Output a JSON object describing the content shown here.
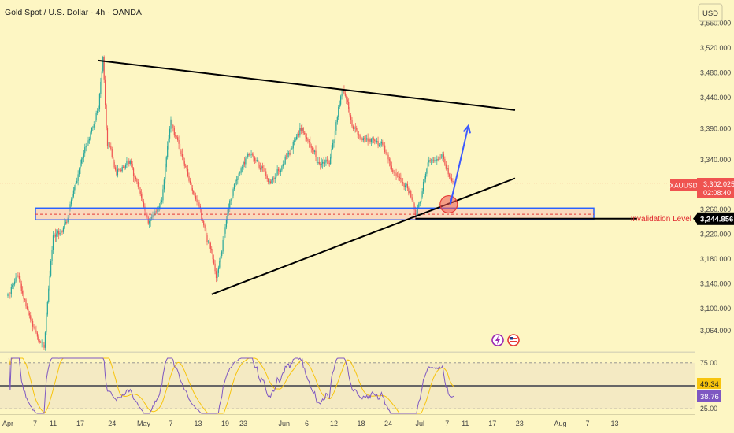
{
  "header": {
    "title": "Gold Spot / U.S. Dollar · 4h · OANDA"
  },
  "currency_button": "USD",
  "symbol_tag": {
    "symbol": "XAUUSD",
    "price": "3,302.025",
    "countdown": "02:08:40"
  },
  "invalidation": {
    "label": "Invalidation Level",
    "value": "3,244.856"
  },
  "colors": {
    "background": "#fdf6c3",
    "up": "#26a69a",
    "down": "#ef5350",
    "support_box": "#2962ff",
    "trendline": "#000000",
    "arrow": "#3d5afe",
    "rsi": "#7e57c2",
    "rsi_ma": "#f7c40d",
    "invalidation_text": "#e0262d"
  },
  "chart_data": [
    {
      "type": "candlestick",
      "title": "Gold Spot / U.S. Dollar · 4h · OANDA",
      "ylim": [
        3030,
        3590
      ],
      "y_ticks": [
        "3,560.000",
        "3,520.000",
        "3,480.000",
        "3,440.000",
        "3,390.000",
        "3,340.000",
        "3,260.000",
        "3,220.000",
        "3,180.000",
        "3,140.000",
        "3,100.000",
        "3,064.000"
      ],
      "x_ticks": [
        "Apr",
        "7",
        "11",
        "17",
        "24",
        "May",
        "7",
        "13",
        "19",
        "23",
        "Jun",
        "6",
        "12",
        "18",
        "24",
        "Jul",
        "7",
        "11",
        "17",
        "23",
        "Aug",
        "7",
        "13"
      ],
      "path": [
        [
          "Apr 1",
          3120
        ],
        [
          "Apr 3",
          3150
        ],
        [
          "Apr 6",
          3080
        ],
        [
          "Apr 9",
          3040
        ],
        [
          "Apr 11",
          3220
        ],
        [
          "Apr 14",
          3240
        ],
        [
          "Apr 17",
          3330
        ],
        [
          "Apr 21",
          3420
        ],
        [
          "Apr 22",
          3500
        ],
        [
          "Apr 23",
          3360
        ],
        [
          "Apr 25",
          3320
        ],
        [
          "Apr 28",
          3340
        ],
        [
          "Apr 30",
          3290
        ],
        [
          "May 2",
          3240
        ],
        [
          "May 5",
          3270
        ],
        [
          "May 7",
          3400
        ],
        [
          "May 9",
          3350
        ],
        [
          "May 12",
          3290
        ],
        [
          "May 15",
          3215
        ],
        [
          "May 16",
          3190
        ],
        [
          "May 17",
          3150
        ],
        [
          "May 19",
          3230
        ],
        [
          "May 21",
          3300
        ],
        [
          "May 24",
          3350
        ],
        [
          "May 27",
          3330
        ],
        [
          "May 29",
          3300
        ],
        [
          "Jun 2",
          3350
        ],
        [
          "Jun 5",
          3390
        ],
        [
          "Jun 7",
          3360
        ],
        [
          "Jun 9",
          3330
        ],
        [
          "Jun 11",
          3340
        ],
        [
          "Jun 13",
          3420
        ],
        [
          "Jun 14",
          3450
        ],
        [
          "Jun 16",
          3400
        ],
        [
          "Jun 19",
          3370
        ],
        [
          "Jun 23",
          3360
        ],
        [
          "Jun 25",
          3330
        ],
        [
          "Jun 27",
          3310
        ],
        [
          "Jun 29",
          3280
        ],
        [
          "Jun 30",
          3250
        ],
        [
          "Jul 1",
          3280
        ],
        [
          "Jul 2",
          3320
        ],
        [
          "Jul 3",
          3345
        ],
        [
          "Jul 6",
          3345
        ],
        [
          "Jul 7",
          3325
        ],
        [
          "Jul 8",
          3302
        ]
      ],
      "support_zone": [
        3243,
        3262
      ],
      "support_zone_mid": 3252,
      "invalidation_level": 3244.856,
      "last_price": 3302.025,
      "descending_trendline": [
        [
          "Apr 21",
          3500
        ],
        [
          "Jul 22",
          3420
        ]
      ],
      "ascending_trendline": [
        [
          "May 16",
          3123
        ],
        [
          "Jul 22",
          3310
        ]
      ],
      "projection_arrow": [
        [
          "Jul 7",
          3268
        ],
        [
          "Jul 11",
          3395
        ]
      ],
      "highlight_circle": [
        "Jul 7",
        3268
      ]
    },
    {
      "type": "line",
      "title": "RSI",
      "ylim": [
        20,
        80
      ],
      "y_ticks": [
        "75.00",
        "25.00"
      ],
      "levels": [
        75,
        50,
        25
      ],
      "series": [
        {
          "role": "rsi",
          "current": 38.76
        },
        {
          "role": "rsi-ma",
          "current": 49.34
        }
      ]
    }
  ]
}
